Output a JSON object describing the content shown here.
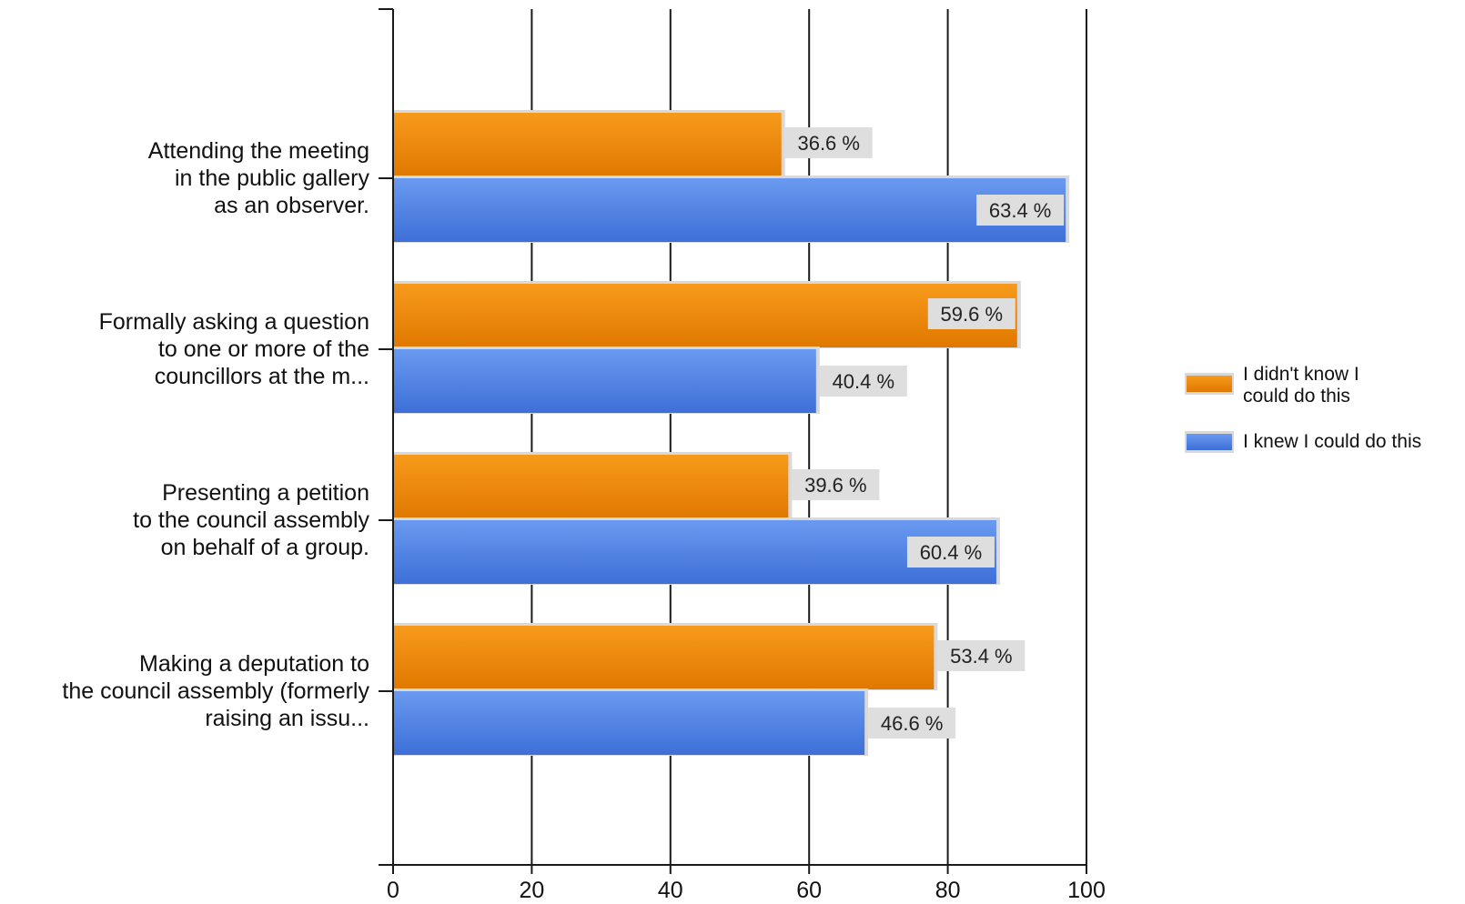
{
  "chart_data": {
    "type": "bar",
    "orientation": "horizontal",
    "categories": [
      [
        "Attending the meeting",
        "in the public gallery",
        "as an observer."
      ],
      [
        "Formally asking a question",
        "to one or more of the",
        "councillors at the m..."
      ],
      [
        "Presenting a petition",
        "to the council assembly",
        "on behalf of a group."
      ],
      [
        "Making a deputation to",
        "the council assembly (formerly",
        "raising an issu..."
      ]
    ],
    "series": [
      {
        "name": "I didn't know I could do this",
        "legend_lines": [
          "I didn't know I",
          "could do this"
        ],
        "color": "#f0860a",
        "values": [
          56,
          90,
          57,
          78
        ],
        "labels": [
          "36.6 %",
          "59.6 %",
          "39.6 %",
          "53.4 %"
        ]
      },
      {
        "name": "I knew I could do this",
        "legend_lines": [
          "I knew I could do this"
        ],
        "color": "#4a7fe0",
        "values": [
          97,
          61,
          87,
          68
        ],
        "labels": [
          "63.4 %",
          "40.4 %",
          "60.4 %",
          "46.6 %"
        ]
      }
    ],
    "xlim": [
      0,
      100
    ],
    "xticks": [
      0,
      20,
      40,
      60,
      80,
      100
    ],
    "grid": true,
    "legend_position": "right"
  }
}
